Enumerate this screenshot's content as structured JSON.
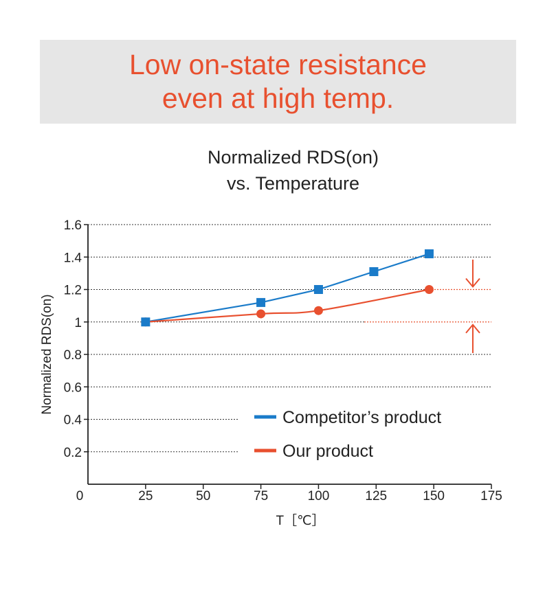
{
  "banner": {
    "line1": "Low on-state resistance",
    "line2": "even at high temp."
  },
  "chart_data": {
    "type": "line",
    "title_line1": "Normalized RDS(on)",
    "title_line2": "vs. Temperature",
    "xlabel": "T［℃］",
    "ylabel": "Normalized RDS(on)",
    "xlim": [
      0,
      175
    ],
    "ylim": [
      0,
      1.6
    ],
    "x_ticks": [
      0,
      25,
      50,
      75,
      100,
      125,
      150,
      175
    ],
    "y_ticks": [
      0.2,
      0.4,
      0.6,
      0.8,
      1,
      1.2,
      1.4,
      1.6
    ],
    "y_tick_labels": [
      "0.2",
      "0.4",
      "0.6",
      "0.8",
      "1",
      "1.2",
      "1.4",
      "1.6"
    ],
    "grid": "horizontal dashed",
    "legend_position": "bottom-right",
    "series": [
      {
        "name": "Competitor’s product",
        "color": "#1a7bc9",
        "marker": "square",
        "x": [
          25,
          75,
          100,
          124,
          148
        ],
        "y": [
          1.0,
          1.12,
          1.2,
          1.31,
          1.42
        ]
      },
      {
        "name": "Our product",
        "color": "#e8502f",
        "marker": "circle",
        "x": [
          25,
          75,
          100,
          148
        ],
        "y": [
          1.0,
          1.05,
          1.07,
          1.2
        ]
      }
    ],
    "annotations": {
      "color": "#e8502f",
      "type": "difference-arrows",
      "between": [
        1.0,
        1.2
      ]
    }
  }
}
